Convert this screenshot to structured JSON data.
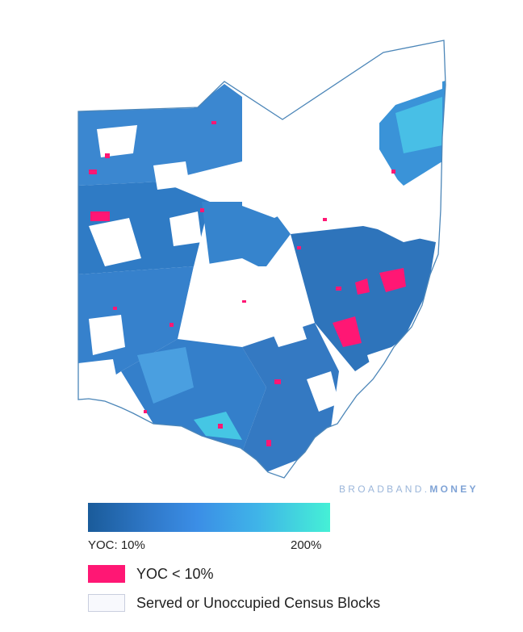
{
  "map": {
    "state": "Ohio",
    "colors": {
      "outline": "#4c86b8",
      "low": "#1a5b9a",
      "mid": "#3b8ee6",
      "high": "#45f0d6",
      "below_threshold": "#ff1774",
      "served": "#f8f9fd"
    }
  },
  "watermark": {
    "part1": "BROADBAND.",
    "part2": "MONEY"
  },
  "legend": {
    "scale_min_label": "YOC: 10%",
    "scale_max_label": "200%",
    "items": [
      {
        "label": "YOC < 10%",
        "color": "#ff1774"
      },
      {
        "label": "Served or Unoccupied Census Blocks",
        "color": "#f8f9fd"
      }
    ]
  }
}
